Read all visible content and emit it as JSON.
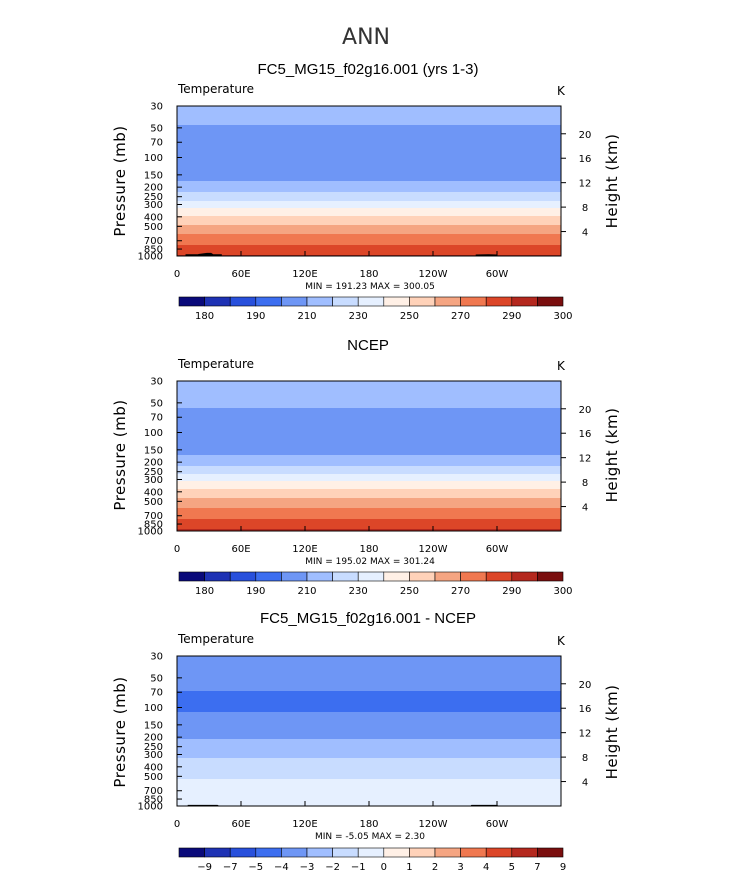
{
  "figure": {
    "title": "ANN"
  },
  "colors": {
    "abs_palette": [
      "#0a0a7a",
      "#1e32b4",
      "#2850dc",
      "#3c6ef0",
      "#6e96f5",
      "#a0beff",
      "#c8dcff",
      "#e6f0ff",
      "#fff0e6",
      "#ffd2b9",
      "#f5a582",
      "#f07850",
      "#dc4628",
      "#b4281e",
      "#7a0e0e"
    ],
    "diff_palette": [
      "#0a0a7a",
      "#1e32b4",
      "#2850dc",
      "#3c6ef0",
      "#6e96f5",
      "#a0beff",
      "#c8dcff",
      "#e6f0ff",
      "#fff0e6",
      "#ffd2b9",
      "#f5a582",
      "#f07850",
      "#dc4628",
      "#b4281e",
      "#7a0e0e"
    ],
    "frame": "#000000",
    "topography": "#000000"
  },
  "chart_data": [
    {
      "type": "heatmap",
      "title": "FC5_MG15_f02g16.001 (yrs 1-3)",
      "variable_label": "Temperature",
      "units": "K",
      "ylabel": "Pressure (mb)",
      "ylabel_right": "Height (km)",
      "x_ticks": [
        "0",
        "60E",
        "120E",
        "180",
        "120W",
        "60W"
      ],
      "x_tick_values": [
        0,
        60,
        120,
        180,
        240,
        300
      ],
      "xlim": [
        0,
        360
      ],
      "y_ticks": [
        "30",
        "50",
        "70",
        "100",
        "150",
        "200",
        "250",
        "300",
        "400",
        "500",
        "700",
        "850",
        "1000"
      ],
      "y_tick_values": [
        30,
        50,
        70,
        100,
        150,
        200,
        250,
        300,
        400,
        500,
        700,
        850,
        1000
      ],
      "ylim": [
        30,
        1000
      ],
      "height_ticks": [
        "4",
        "8",
        "12",
        "16",
        "20"
      ],
      "height_tick_values": [
        4,
        8,
        12,
        16,
        20
      ],
      "stats_text": "MIN = 191.23   MAX = 300.05",
      "min": 191.23,
      "max": 300.05,
      "colorbar_labels": [
        "180",
        "190",
        "210",
        "230",
        "250",
        "270",
        "290",
        "300"
      ],
      "contour_levels": [
        180,
        185,
        190,
        200,
        210,
        220,
        230,
        240,
        250,
        260,
        270,
        280,
        290,
        295,
        300
      ],
      "profile": [
        [
          30,
          213
        ],
        [
          40,
          212
        ],
        [
          50,
          209
        ],
        [
          55,
          208
        ],
        [
          60,
          205
        ],
        [
          70,
          203
        ],
        [
          80,
          201
        ],
        [
          100,
          201
        ],
        [
          125,
          203
        ],
        [
          150,
          206
        ],
        [
          175,
          210
        ],
        [
          200,
          215
        ],
        [
          225,
          220
        ],
        [
          250,
          225
        ],
        [
          275,
          230
        ],
        [
          300,
          236
        ],
        [
          350,
          244
        ],
        [
          400,
          251
        ],
        [
          450,
          257
        ],
        [
          500,
          262
        ],
        [
          550,
          266
        ],
        [
          600,
          270
        ],
        [
          650,
          273
        ],
        [
          700,
          276
        ],
        [
          750,
          279
        ],
        [
          800,
          282
        ],
        [
          850,
          285
        ],
        [
          900,
          287
        ],
        [
          950,
          289
        ],
        [
          1000,
          291
        ]
      ],
      "topography": [
        [
          0,
          1000
        ],
        [
          8,
          1000
        ],
        [
          8,
          960
        ],
        [
          20,
          960
        ],
        [
          20,
          955
        ],
        [
          28,
          930
        ],
        [
          32,
          930
        ],
        [
          34,
          960
        ],
        [
          42,
          960
        ],
        [
          42,
          1000
        ],
        [
          280,
          1000
        ],
        [
          280,
          965
        ],
        [
          292,
          960
        ],
        [
          300,
          965
        ],
        [
          300,
          1000
        ],
        [
          360,
          1000
        ]
      ]
    },
    {
      "type": "heatmap",
      "title": "NCEP",
      "variable_label": "Temperature",
      "units": "K",
      "ylabel": "Pressure (mb)",
      "ylabel_right": "Height (km)",
      "x_ticks": [
        "0",
        "60E",
        "120E",
        "180",
        "120W",
        "60W"
      ],
      "x_tick_values": [
        0,
        60,
        120,
        180,
        240,
        300
      ],
      "xlim": [
        0,
        360
      ],
      "y_ticks": [
        "30",
        "50",
        "70",
        "100",
        "150",
        "200",
        "250",
        "300",
        "400",
        "500",
        "700",
        "850",
        "1000"
      ],
      "y_tick_values": [
        30,
        50,
        70,
        100,
        150,
        200,
        250,
        300,
        400,
        500,
        700,
        850,
        1000
      ],
      "ylim": [
        30,
        1000
      ],
      "height_ticks": [
        "4",
        "8",
        "12",
        "16",
        "20"
      ],
      "height_tick_values": [
        4,
        8,
        12,
        16,
        20
      ],
      "stats_text": "MIN = 195.02   MAX = 301.24",
      "min": 195.02,
      "max": 301.24,
      "colorbar_labels": [
        "180",
        "190",
        "210",
        "230",
        "250",
        "270",
        "290",
        "300"
      ],
      "contour_levels": [
        180,
        185,
        190,
        200,
        210,
        220,
        230,
        240,
        250,
        260,
        270,
        280,
        290,
        295,
        300
      ],
      "profile": [
        [
          30,
          216
        ],
        [
          40,
          214
        ],
        [
          50,
          212
        ],
        [
          60,
          209
        ],
        [
          70,
          206
        ],
        [
          80,
          204
        ],
        [
          100,
          203
        ],
        [
          125,
          204
        ],
        [
          150,
          207
        ],
        [
          175,
          211
        ],
        [
          200,
          216
        ],
        [
          225,
          221
        ],
        [
          250,
          227
        ],
        [
          275,
          232
        ],
        [
          300,
          238
        ],
        [
          350,
          246
        ],
        [
          400,
          253
        ],
        [
          450,
          259
        ],
        [
          500,
          264
        ],
        [
          550,
          268
        ],
        [
          600,
          271
        ],
        [
          650,
          274
        ],
        [
          700,
          277
        ],
        [
          750,
          280
        ],
        [
          800,
          283
        ],
        [
          850,
          286
        ],
        [
          900,
          288
        ],
        [
          950,
          290
        ],
        [
          1000,
          292
        ]
      ],
      "topography": []
    },
    {
      "type": "heatmap",
      "title": "FC5_MG15_f02g16.001 - NCEP",
      "variable_label": "Temperature",
      "units": "K",
      "ylabel": "Pressure (mb)",
      "ylabel_right": "Height (km)",
      "x_ticks": [
        "0",
        "60E",
        "120E",
        "180",
        "120W",
        "60W"
      ],
      "x_tick_values": [
        0,
        60,
        120,
        180,
        240,
        300
      ],
      "xlim": [
        0,
        360
      ],
      "y_ticks": [
        "30",
        "50",
        "70",
        "100",
        "150",
        "200",
        "250",
        "300",
        "400",
        "500",
        "700",
        "850",
        "1000"
      ],
      "y_tick_values": [
        30,
        50,
        70,
        100,
        150,
        200,
        250,
        300,
        400,
        500,
        700,
        850,
        1000
      ],
      "ylim": [
        30,
        1000
      ],
      "height_ticks": [
        "4",
        "8",
        "12",
        "16",
        "20"
      ],
      "height_tick_values": [
        4,
        8,
        12,
        16,
        20
      ],
      "stats_text": "MIN =   -5.05   MAX =    2.30",
      "min": -5.05,
      "max": 2.3,
      "colorbar_labels": [
        "−9",
        "−7",
        "−5",
        "−4",
        "−3",
        "−2",
        "−1",
        "0",
        "1",
        "2",
        "3",
        "4",
        "5",
        "7",
        "9"
      ],
      "contour_levels": [
        -9,
        -7,
        -5,
        -4,
        -3,
        -2,
        -1,
        0,
        1,
        2,
        3,
        4,
        5,
        7,
        9
      ],
      "profile": [
        [
          30,
          -3.2
        ],
        [
          45,
          -3.1
        ],
        [
          60,
          -3.6
        ],
        [
          70,
          -4.1
        ],
        [
          85,
          -4.4
        ],
        [
          100,
          -4.2
        ],
        [
          130,
          -3.6
        ],
        [
          170,
          -3.4
        ],
        [
          200,
          -3.1
        ],
        [
          250,
          -2.6
        ],
        [
          300,
          -2.2
        ],
        [
          350,
          -1.8
        ],
        [
          400,
          -1.6
        ],
        [
          450,
          -1.4
        ],
        [
          500,
          -1.3
        ],
        [
          550,
          -0.9
        ],
        [
          600,
          -0.7
        ],
        [
          650,
          -0.6
        ],
        [
          700,
          -0.6
        ],
        [
          750,
          -0.5
        ],
        [
          800,
          -0.5
        ],
        [
          850,
          -0.4
        ],
        [
          900,
          -0.3
        ],
        [
          950,
          -0.4
        ],
        [
          1000,
          -0.6
        ]
      ],
      "topography": [
        [
          0,
          1000
        ],
        [
          10,
          1000
        ],
        [
          10,
          975
        ],
        [
          38,
          975
        ],
        [
          40,
          1000
        ],
        [
          275,
          1000
        ],
        [
          276,
          975
        ],
        [
          300,
          975
        ],
        [
          302,
          1000
        ],
        [
          360,
          1000
        ]
      ]
    }
  ]
}
